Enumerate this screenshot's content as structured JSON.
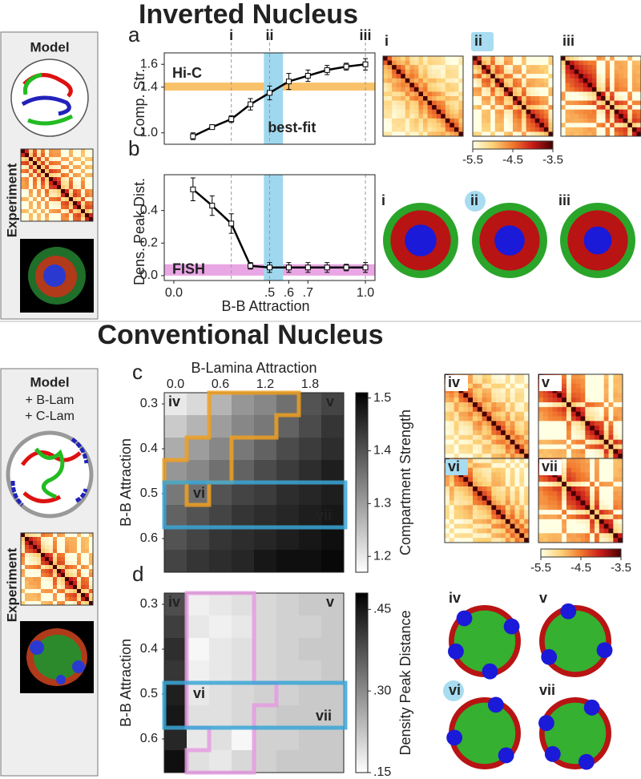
{
  "figure": {
    "top_title": "Inverted Nucleus",
    "bottom_title": "Conventional Nucleus",
    "top_side": {
      "model": "Model",
      "experiment": "Experiment"
    },
    "bottom_side": {
      "model": [
        "Model",
        "+ B-Lam",
        "+ C-Lam"
      ],
      "experiment": "Experiment"
    },
    "panel_letters": [
      "a",
      "b",
      "c",
      "d"
    ],
    "top_maps": [
      "i",
      "ii",
      "iii"
    ],
    "top_structures": [
      "i",
      "ii",
      "iii"
    ],
    "bottom_maps": [
      "iv",
      "v",
      "vi",
      "vii"
    ],
    "bottom_structures": [
      "iv",
      "v",
      "vi",
      "vii"
    ],
    "contact_colorbar": {
      "ticks": [
        -5.5,
        -4.5,
        -3.5
      ]
    }
  },
  "chart_data": [
    {
      "type": "line",
      "y_label": "Comp. Str.",
      "xlim": [
        -0.05,
        1.05
      ],
      "ylim": [
        0.9,
        1.7
      ],
      "yticks": [
        {
          "value": 1,
          "label": "1.0"
        },
        1.4,
        1.6
      ],
      "x": [
        0.1,
        0.2,
        0.3,
        0.4,
        0.5,
        0.6,
        0.7,
        0.8,
        0.9,
        1.0
      ],
      "series": [
        {
          "color": "#000000",
          "values": [
            0.97,
            1.05,
            1.12,
            1.25,
            1.35,
            1.45,
            1.5,
            1.55,
            1.58,
            1.6
          ],
          "errors": [
            0.03,
            0.02,
            0.03,
            0.05,
            0.06,
            0.07,
            0.05,
            0.04,
            0.03,
            0.05
          ]
        }
      ],
      "hband": {
        "label": "Hi-C",
        "range": [
          1.37,
          1.44
        ],
        "color": "#f9c26a"
      },
      "xband": {
        "label": "best-fit",
        "range": [
          0.47,
          0.57
        ],
        "color": "#9fd8ee"
      },
      "markers": [
        {
          "x": 0.3,
          "label": "i"
        },
        {
          "x": 0.5,
          "label": "ii"
        },
        {
          "x": 1.0,
          "label": "iii"
        }
      ]
    },
    {
      "type": "line",
      "x_label": "B-B Attraction",
      "y_label": "Dens. Peak Dist.",
      "xlim": [
        -0.05,
        1.05
      ],
      "xticks": [
        {
          "value": 0,
          "label": "0.0"
        },
        {
          "value": 0.5,
          "label": ".5"
        },
        {
          "value": 0.6,
          "label": ".6"
        },
        {
          "value": 0.7,
          "label": ".7"
        },
        {
          "value": 1,
          "label": "1.0"
        }
      ],
      "ylim": [
        -0.03,
        0.62
      ],
      "yticks": [
        {
          "value": 0,
          "label": "0.0"
        },
        0.2,
        0.4
      ],
      "x": [
        0.1,
        0.2,
        0.3,
        0.4,
        0.5,
        0.6,
        0.7,
        0.8,
        0.9,
        1.0
      ],
      "series": [
        {
          "color": "#000000",
          "values": [
            0.53,
            0.43,
            0.32,
            0.06,
            0.05,
            0.05,
            0.05,
            0.05,
            0.05,
            0.05
          ],
          "errors": [
            0.07,
            0.06,
            0.06,
            0.02,
            0.03,
            0.03,
            0.03,
            0.03,
            0.02,
            0.03
          ]
        }
      ],
      "hband": {
        "label": "FISH",
        "range": [
          0,
          0.07
        ],
        "color": "#e9a6e4"
      },
      "xband": {
        "range": [
          0.47,
          0.57
        ],
        "color": "#9fd8ee"
      }
    },
    {
      "type": "heatmap",
      "x_label": "B-Lamina Attraction",
      "y_label": "B-B Attraction",
      "colorbar_label": "Compartment Strength",
      "x": [
        0,
        0.3,
        0.6,
        0.9,
        1.2,
        1.5,
        1.8,
        2.1
      ],
      "y": [
        0.3,
        0.35,
        0.4,
        0.45,
        0.5,
        0.55,
        0.6,
        0.65
      ],
      "xticks": [
        {
          "value": 0,
          "label": "0.0"
        },
        0.6,
        1.2,
        1.8
      ],
      "yticks": [
        0.3,
        0.4,
        0.5,
        0.6
      ],
      "zlim": [
        1.17,
        1.51
      ],
      "zticks": [
        1.2,
        1.3,
        1.4,
        1.5
      ],
      "values": [
        [
          1.2,
          1.22,
          1.27,
          1.31,
          1.33,
          1.36,
          1.4,
          1.42
        ],
        [
          1.24,
          1.27,
          1.3,
          1.33,
          1.35,
          1.38,
          1.41,
          1.44
        ],
        [
          1.28,
          1.3,
          1.33,
          1.35,
          1.38,
          1.41,
          1.43,
          1.45
        ],
        [
          1.31,
          1.33,
          1.36,
          1.38,
          1.41,
          1.43,
          1.45,
          1.47
        ],
        [
          1.35,
          1.36,
          1.4,
          1.42,
          1.43,
          1.45,
          1.46,
          1.47
        ],
        [
          1.38,
          1.4,
          1.42,
          1.44,
          1.45,
          1.46,
          1.47,
          1.48
        ],
        [
          1.4,
          1.42,
          1.44,
          1.45,
          1.46,
          1.47,
          1.48,
          1.49
        ],
        [
          1.42,
          1.44,
          1.45,
          1.46,
          1.48,
          1.49,
          1.49,
          1.5
        ]
      ],
      "annotations": [
        "iv",
        "v",
        "vi",
        "vii"
      ]
    },
    {
      "type": "heatmap",
      "y_label": "B-B Attraction",
      "colorbar_label": "Density Peak Distance",
      "x": [
        0,
        0.3,
        0.6,
        0.9,
        1.2,
        1.5,
        1.8,
        2.1
      ],
      "y": [
        0.3,
        0.35,
        0.4,
        0.45,
        0.5,
        0.55,
        0.6,
        0.65
      ],
      "yticks": [
        0.3,
        0.4,
        0.5,
        0.6
      ],
      "zlim": [
        0.15,
        0.48
      ],
      "zticks": [
        {
          "value": 0.15,
          "label": ".15"
        },
        {
          "value": 0.3,
          "label": ".30"
        },
        {
          "value": 0.45,
          "label": ".45"
        }
      ],
      "values": [
        [
          0.38,
          0.17,
          0.18,
          0.19,
          0.2,
          0.21,
          0.22,
          0.22
        ],
        [
          0.4,
          0.18,
          0.17,
          0.18,
          0.2,
          0.21,
          0.21,
          0.22
        ],
        [
          0.42,
          0.16,
          0.18,
          0.19,
          0.2,
          0.21,
          0.22,
          0.22
        ],
        [
          0.41,
          0.17,
          0.18,
          0.19,
          0.2,
          0.21,
          0.21,
          0.22
        ],
        [
          0.44,
          0.18,
          0.19,
          0.2,
          0.21,
          0.21,
          0.22,
          0.22
        ],
        [
          0.45,
          0.19,
          0.19,
          0.2,
          0.21,
          0.22,
          0.22,
          0.22
        ],
        [
          0.43,
          0.18,
          0.19,
          0.16,
          0.21,
          0.21,
          0.22,
          0.22
        ],
        [
          0.46,
          0.19,
          0.18,
          0.2,
          0.21,
          0.22,
          0.22,
          0.22
        ]
      ],
      "annotations": [
        "iv",
        "v",
        "vi",
        "vii"
      ]
    }
  ]
}
